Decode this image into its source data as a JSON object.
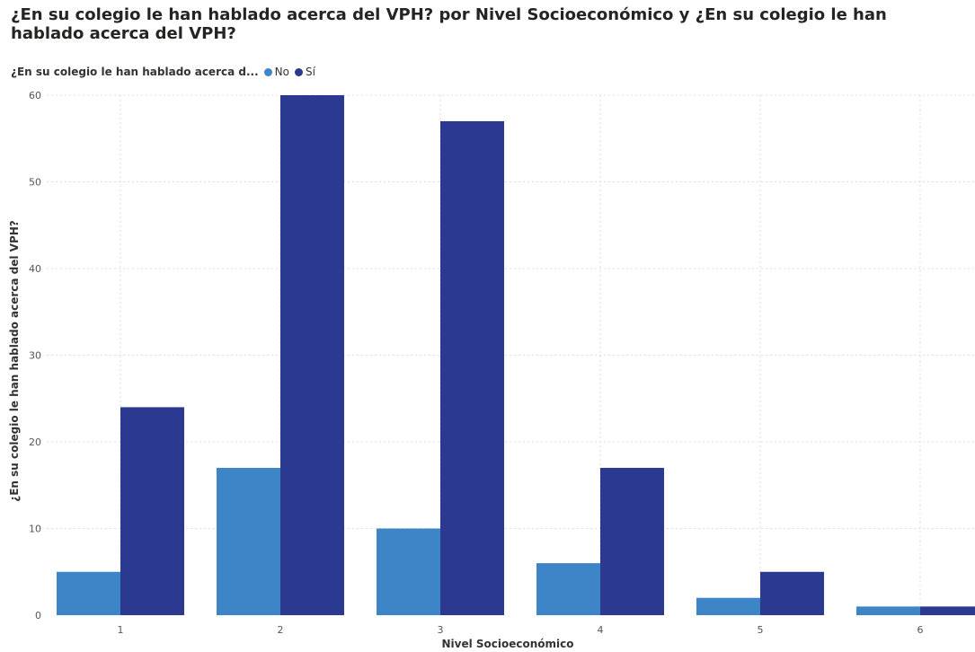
{
  "chart_data": {
    "type": "bar",
    "title": "¿En su colegio le han hablado acerca del VPH? por Nivel Socioeconómico y ¿En su colegio le han hablado acerca del VPH?",
    "legend_title": "¿En su colegio le han hablado acerca d...",
    "legend_position": "top-left",
    "xlabel": "Nivel Socioeconómico",
    "ylabel": "¿En su colegio le han hablado acerca del VPH?",
    "categories": [
      "1",
      "2",
      "3",
      "4",
      "5",
      "6"
    ],
    "series": [
      {
        "name": "No",
        "color": "#3d85c6",
        "values": [
          5,
          17,
          10,
          6,
          2,
          1
        ]
      },
      {
        "name": "Sí",
        "color": "#2b3990",
        "values": [
          24,
          60,
          57,
          17,
          5,
          1
        ]
      }
    ],
    "ylim": [
      0,
      60
    ],
    "yticks": [
      0,
      10,
      20,
      30,
      40,
      50,
      60
    ],
    "grid": true
  }
}
